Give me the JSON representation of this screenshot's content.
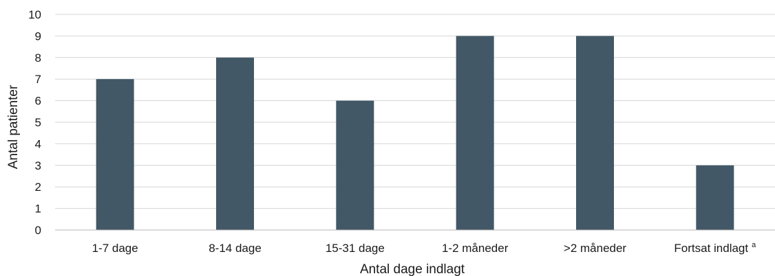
{
  "chart_data": {
    "type": "bar",
    "title": "",
    "xlabel": "Antal dage indlagt",
    "ylabel": "Antal patienter",
    "ylim": [
      0,
      10
    ],
    "yticks": [
      0,
      1,
      2,
      3,
      4,
      5,
      6,
      7,
      8,
      9,
      10
    ],
    "grid": true,
    "categories": [
      "1-7 dage",
      "8-14 dage",
      "15-31 dage",
      "1-2 måneder",
      ">2 måneder",
      "Fortsat indlagt"
    ],
    "category_superscripts": [
      "",
      "",
      "",
      "",
      "",
      "a"
    ],
    "values": [
      7,
      8,
      6,
      9,
      9,
      3
    ],
    "bar_color": "#425866",
    "grid_color": "#d4d4d4"
  }
}
